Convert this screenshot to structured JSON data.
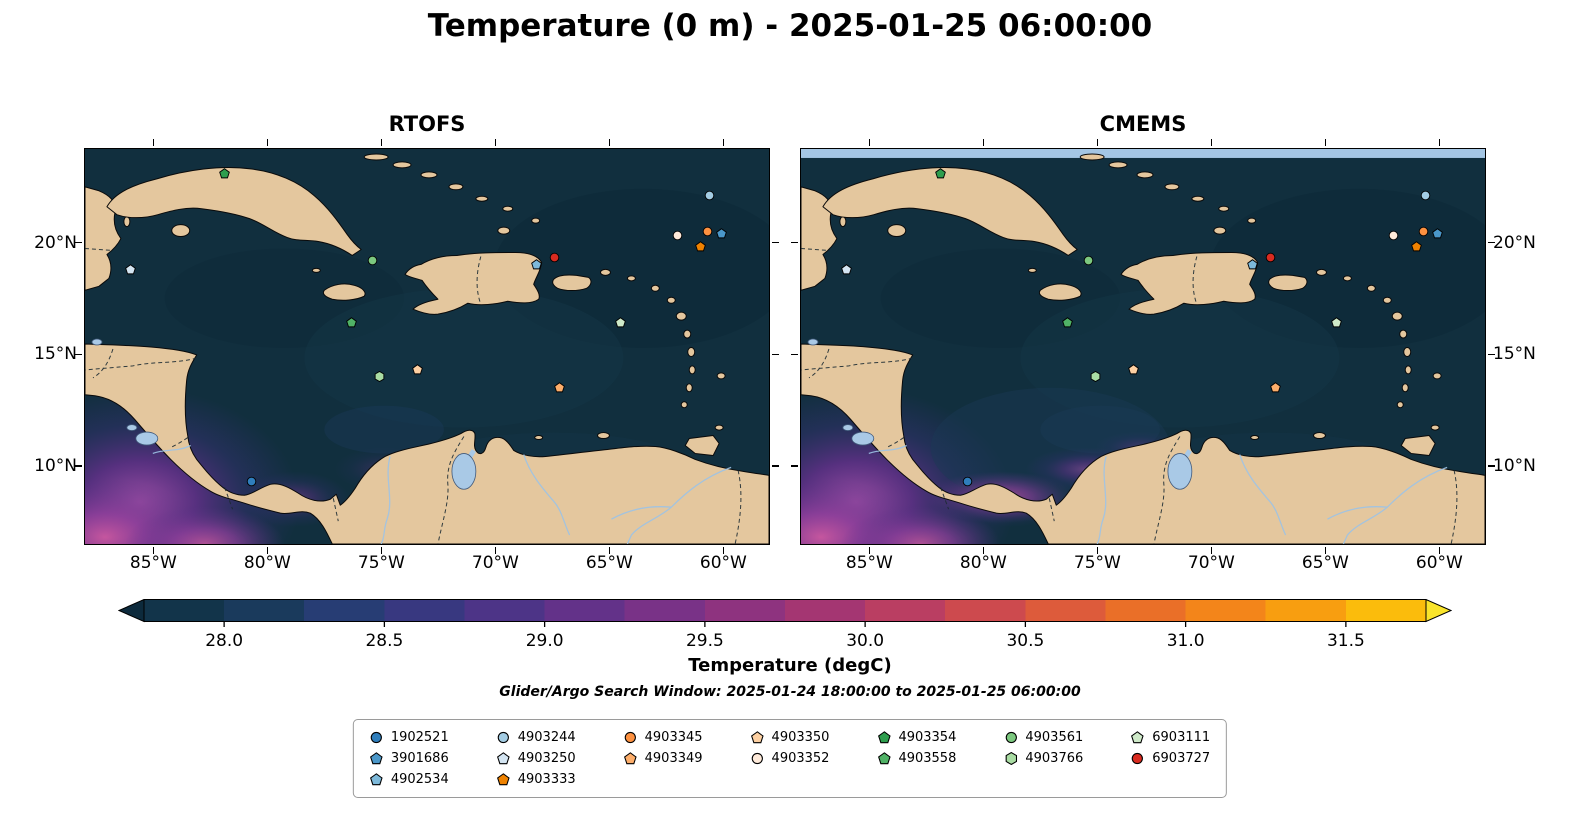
{
  "palette": {
    "ocean": "#112f3e",
    "land": "#e4c79e",
    "lake": "#a9c9e6",
    "river": "#9dc3e6",
    "coast": "#0a0a0a",
    "cmems_top_stripe": "#a4c6e4"
  },
  "chart_data": {
    "type": "scatter",
    "title": "Temperature (0 m) - 2025-01-25 06:00:00",
    "subplots": [
      "RTOFS",
      "CMEMS"
    ],
    "x_tick_labels": [
      "85°W",
      "80°W",
      "75°W",
      "70°W",
      "65°W",
      "60°W"
    ],
    "x_tick_lons_w": [
      85,
      80,
      75,
      70,
      65,
      60
    ],
    "y_tick_labels": [
      "20°N",
      "15°N",
      "10°N"
    ],
    "y_tick_lats_n": [
      20,
      15,
      10
    ],
    "lon_w_range": [
      88,
      58
    ],
    "lat_n_range": [
      24.2,
      6.5
    ],
    "colorbar": {
      "label": "Temperature (degC)",
      "tick_labels": [
        "28.0",
        "28.5",
        "29.0",
        "29.5",
        "30.0",
        "30.5",
        "31.0",
        "31.5"
      ],
      "tick_values": [
        28.0,
        28.5,
        29.0,
        29.5,
        30.0,
        30.5,
        31.0,
        31.5
      ],
      "value_range": [
        27.75,
        31.75
      ],
      "band_colors": [
        "#12344a",
        "#1a3a5c",
        "#273d74",
        "#383880",
        "#4d3487",
        "#633289",
        "#793287",
        "#8e337f",
        "#a43672",
        "#ba3e62",
        "#cd4a4e",
        "#dd5b3b",
        "#ea6f28",
        "#f3851a",
        "#f89e10",
        "#fbbc0c"
      ],
      "under_color": "#0d2a3c",
      "over_color": "#f9e42b"
    },
    "search_window": "Glider/Argo Search Window: 2025-01-24 18:00:00 to 2025-01-25 06:00:00",
    "legend_column_counts": [
      3,
      3,
      2,
      2,
      2,
      2,
      2
    ],
    "floats": [
      {
        "id": "1902521",
        "shape": "circle",
        "color": "#2f7ebc",
        "lon_w": 80.7,
        "lat_n": 9.5
      },
      {
        "id": "3901686",
        "shape": "pentagon",
        "color": "#4a97c9",
        "lon_w": 60.1,
        "lat_n": 20.6
      },
      {
        "id": "4902534",
        "shape": "pentagon",
        "color": "#7db9da",
        "lon_w": 68.2,
        "lat_n": 19.2
      },
      {
        "id": "4903244",
        "shape": "circle",
        "color": "#a3cce3",
        "lon_w": 60.6,
        "lat_n": 22.3
      },
      {
        "id": "4903250",
        "shape": "pentagon",
        "color": "#d4e5f2",
        "lon_w": 86.0,
        "lat_n": 19.0
      },
      {
        "id": "4903333",
        "shape": "pentagon",
        "color": "#ef8200",
        "lon_w": 61.0,
        "lat_n": 20.0
      },
      {
        "id": "4903345",
        "shape": "circle",
        "color": "#fd9140",
        "lon_w": 60.7,
        "lat_n": 20.7
      },
      {
        "id": "4903349",
        "shape": "pentagon",
        "color": "#fdae6b",
        "lon_w": 67.2,
        "lat_n": 13.7
      },
      {
        "id": "4903350",
        "shape": "pentagon",
        "color": "#fdd0a2",
        "lon_w": 73.4,
        "lat_n": 14.5
      },
      {
        "id": "4903352",
        "shape": "circle",
        "color": "#feeada",
        "lon_w": 62.0,
        "lat_n": 20.5
      },
      {
        "id": "4903354",
        "shape": "pentagon",
        "color": "#2e9e4e",
        "lon_w": 81.9,
        "lat_n": 23.3
      },
      {
        "id": "4903558",
        "shape": "pentagon",
        "color": "#50b266",
        "lon_w": 76.3,
        "lat_n": 16.6
      },
      {
        "id": "4903561",
        "shape": "circle",
        "color": "#7cc87f",
        "lon_w": 75.4,
        "lat_n": 19.4
      },
      {
        "id": "4903766",
        "shape": "hexagon",
        "color": "#a9dca3",
        "lon_w": 75.1,
        "lat_n": 14.2
      },
      {
        "id": "6903111",
        "shape": "pentagon",
        "color": "#cfeac9",
        "lon_w": 64.5,
        "lat_n": 16.6
      },
      {
        "id": "6903727",
        "shape": "circle",
        "color": "#d92b20",
        "lon_w": 67.4,
        "lat_n": 19.5
      }
    ]
  }
}
